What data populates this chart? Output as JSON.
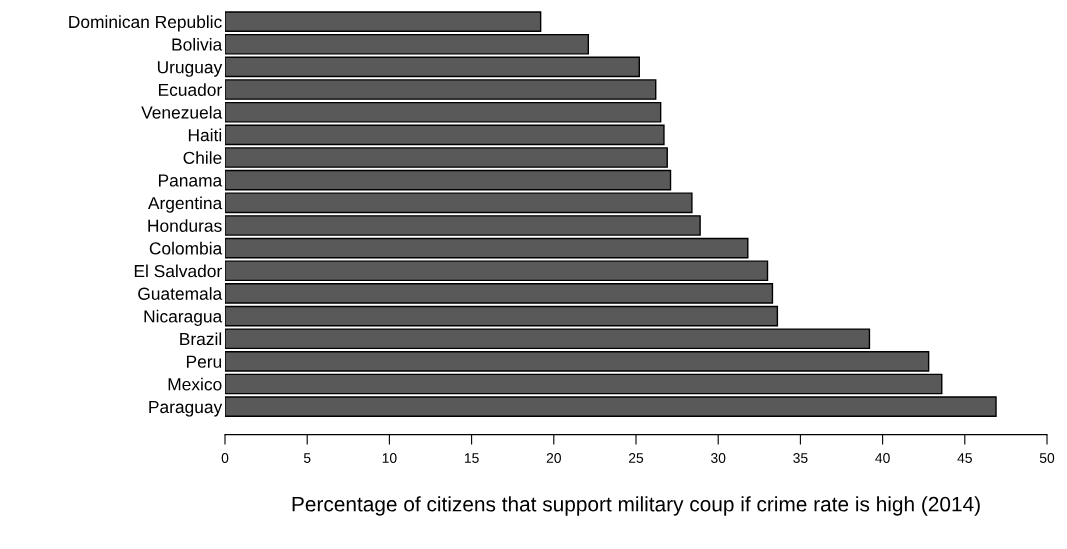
{
  "chart_data": {
    "type": "bar",
    "orientation": "horizontal",
    "xlabel": "Percentage of citizens that support military coup if crime rate is high (2014)",
    "categories": [
      "Dominican Republic",
      "Bolivia",
      "Uruguay",
      "Ecuador",
      "Venezuela",
      "Haiti",
      "Chile",
      "Panama",
      "Argentina",
      "Honduras",
      "Colombia",
      "El Salvador",
      "Guatemala",
      "Nicaragua",
      "Brazil",
      "Peru",
      "Mexico",
      "Paraguay"
    ],
    "values": [
      19.2,
      22.1,
      25.2,
      26.2,
      26.5,
      26.7,
      26.9,
      27.1,
      28.4,
      28.9,
      31.8,
      33.0,
      33.3,
      33.6,
      39.2,
      42.8,
      43.6,
      46.9
    ],
    "color": "#595959",
    "xlim": [
      0,
      50
    ],
    "xticks": [
      0,
      5,
      10,
      15,
      20,
      25,
      30,
      35,
      40,
      45,
      50
    ],
    "grid": false
  }
}
